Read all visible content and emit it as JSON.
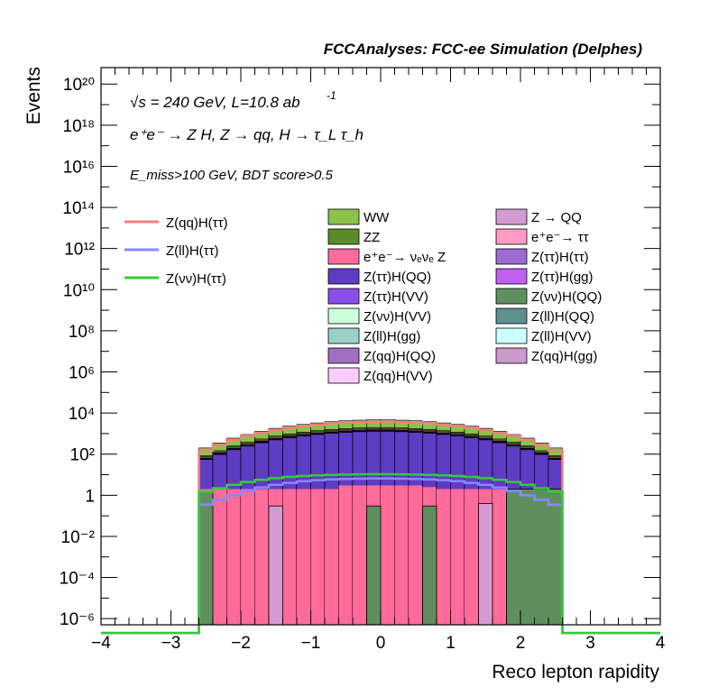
{
  "header": {
    "title": "FCCAnalyses: FCC-ee Simulation (Delphes)",
    "energy_line": "√s = 240 GeV, L=10.8 ab",
    "energy_sup": "-1",
    "process_line": "e⁺e⁻ → Z H, Z → qq, H → τ_L τ_h",
    "selection_line": "E_miss>100 GeV, BDT score>0.5"
  },
  "chart_data": {
    "type": "area",
    "xlabel": "Reco lepton rapidity",
    "ylabel": "Events",
    "x_ticks": [
      "−4",
      "−3",
      "−2",
      "−1",
      "0",
      "1",
      "2",
      "3",
      "4"
    ],
    "y_ticks": [
      "10⁻⁶",
      "10⁻⁴",
      "10⁻²",
      "1",
      "10²",
      "10⁴",
      "10⁶",
      "10⁸",
      "10¹⁰",
      "10¹²",
      "10¹⁴",
      "10¹⁶",
      "10¹⁸",
      "10²⁰"
    ],
    "xlim": [
      -4,
      4
    ],
    "ylog10_lim": [
      -6.3,
      20.8
    ],
    "log_y": true,
    "bin_edges": [
      -2.6,
      -2.4,
      -2.2,
      -2.0,
      -1.8,
      -1.6,
      -1.4,
      -1.2,
      -1.0,
      -0.8,
      -0.6,
      -0.4,
      -0.2,
      0.0,
      0.2,
      0.4,
      0.6,
      0.8,
      1.0,
      1.2,
      1.4,
      1.6,
      1.8,
      2.0,
      2.2,
      2.4,
      2.6
    ],
    "stack_totals": [
      200,
      350,
      600,
      900,
      1300,
      1800,
      2300,
      2800,
      3300,
      3800,
      4200,
      4500,
      4700,
      4700,
      4500,
      4200,
      3800,
      3300,
      2800,
      2300,
      1800,
      1300,
      900,
      600,
      350,
      200
    ],
    "stack_colors": [
      "#8bc34a",
      "#5b8c2a",
      "#ff9bc4",
      "#9c6bd4",
      "#c88bd6",
      "#ffc0e0",
      "#cfe8ff",
      "#ccffdd",
      "#b09cf0",
      "#8a4fe8",
      "#a06fc0",
      "#7a9ccc",
      "#ffb0d0",
      "#6b4f8c",
      "#9ad0c8",
      "#5f3cc4"
    ],
    "stack_layer_fractions": [
      0.58,
      0.12,
      0.1,
      0.05,
      0.04,
      0.03,
      0.025,
      0.015,
      0.01,
      0.008,
      0.006,
      0.004,
      0.003,
      0.002,
      0.0015,
      0.001
    ],
    "pink_bins": [
      2,
      2,
      2,
      2,
      2,
      2,
      2,
      2,
      2,
      2,
      3,
      3,
      3,
      3,
      3,
      3,
      2.5,
      2,
      2,
      2,
      2,
      2,
      2,
      2,
      2,
      2
    ],
    "pink_color": "#ff6b9b",
    "green_fill_bins": [
      {
        "x0": -2.6,
        "x1": -2.4,
        "y": 1.5
      },
      {
        "x0": -0.2,
        "x1": 0.0,
        "y": 0.3
      },
      {
        "x0": 0.6,
        "x1": 0.8,
        "y": 0.3
      },
      {
        "x0": 1.8,
        "x1": 2.6,
        "y": 2.0
      }
    ],
    "green_fill_color": "#5f8f5f",
    "qq_bins": [
      {
        "x0": -1.6,
        "x1": -1.4,
        "y": 0.3
      },
      {
        "x0": 1.4,
        "x1": 1.6,
        "y": 0.4
      }
    ],
    "qq_color": "#d59bd0",
    "series": [
      {
        "name": "Z(qq)H(ττ)",
        "color": "#f08080",
        "values": [
          150,
          280,
          500,
          780,
          1100,
          1500,
          1900,
          2300,
          2700,
          3100,
          3400,
          3600,
          3750,
          3750,
          3600,
          3400,
          3100,
          2700,
          2300,
          1900,
          1500,
          1100,
          780,
          500,
          280,
          150
        ]
      },
      {
        "name": "Z(ll)H(ττ)",
        "color": "#8888ff",
        "values": [
          0.35,
          0.6,
          1.0,
          1.6,
          2.4,
          3.2,
          4.0,
          4.8,
          5.4,
          5.9,
          6.2,
          6.4,
          6.5,
          6.5,
          6.4,
          6.2,
          5.9,
          5.4,
          4.8,
          4.0,
          3.2,
          2.4,
          1.6,
          1.0,
          0.6,
          0.35
        ]
      },
      {
        "name": "Z(νν)H(ττ)",
        "color": "#33cc33",
        "values": [
          1.5,
          2.2,
          3.2,
          4.4,
          5.6,
          6.8,
          7.8,
          8.6,
          9.3,
          9.8,
          10.2,
          10.4,
          10.5,
          10.5,
          10.4,
          10.2,
          9.8,
          9.3,
          8.6,
          7.8,
          6.8,
          5.6,
          4.4,
          3.2,
          2.2,
          1.5
        ]
      }
    ],
    "legend_left": [
      {
        "label": "Z(qq)H(ττ)",
        "color": "#f08080"
      },
      {
        "label": "Z(ll)H(ττ)",
        "color": "#8888ff"
      },
      {
        "label": "Z(νν)H(ττ)",
        "color": "#33cc33"
      }
    ],
    "legend_middle": [
      {
        "label": "WW",
        "color": "#8bc34a"
      },
      {
        "label": "ZZ",
        "color": "#5b8c2a"
      },
      {
        "label": "e⁺e⁻→ νₑνₑ Z",
        "color": "#ff6b9b"
      },
      {
        "label": "Z(ττ)H(QQ)",
        "color": "#5f3cc4"
      },
      {
        "label": "Z(ττ)H(VV)",
        "color": "#8a4fe8"
      },
      {
        "label": "Z(νν)H(VV)",
        "color": "#ccffdd"
      },
      {
        "label": "Z(ll)H(gg)",
        "color": "#9ad0c8"
      },
      {
        "label": "Z(qq)H(QQ)",
        "color": "#a06fc0"
      },
      {
        "label": "Z(qq)H(VV)",
        "color": "#ffccff"
      }
    ],
    "legend_right": [
      {
        "label": "Z → QQ",
        "color": "#d59bd0"
      },
      {
        "label": "e⁺e⁻→ ττ",
        "color": "#ff9bc4"
      },
      {
        "label": "Z(ττ)H(ττ)",
        "color": "#9c6bd4"
      },
      {
        "label": "Z(ττ)H(gg)",
        "color": "#c060f0"
      },
      {
        "label": "Z(νν)H(QQ)",
        "color": "#5f8f5f"
      },
      {
        "label": "Z(ll)H(QQ)",
        "color": "#5f9090"
      },
      {
        "label": "Z(ll)H(VV)",
        "color": "#ccffff"
      },
      {
        "label": "Z(qq)H(gg)",
        "color": "#cc99cc"
      }
    ]
  }
}
